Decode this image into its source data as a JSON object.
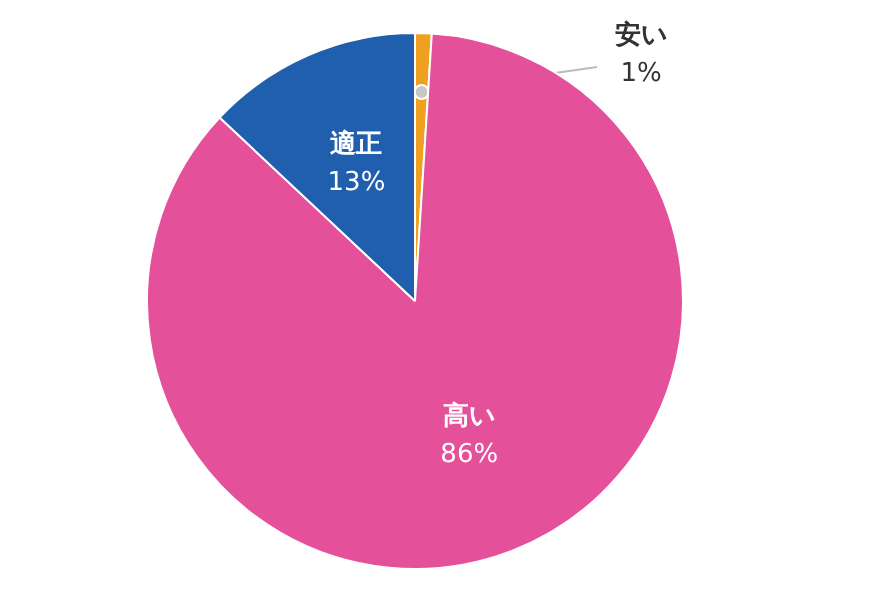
{
  "chart_data": {
    "type": "pie",
    "categories": [
      "安い",
      "高い",
      "適正"
    ],
    "values": [
      1,
      86,
      13
    ],
    "colors": [
      "#f0a020",
      "#e4509a",
      "#1f5fae"
    ],
    "value_labels": [
      "1%",
      "86%",
      "13%"
    ]
  }
}
